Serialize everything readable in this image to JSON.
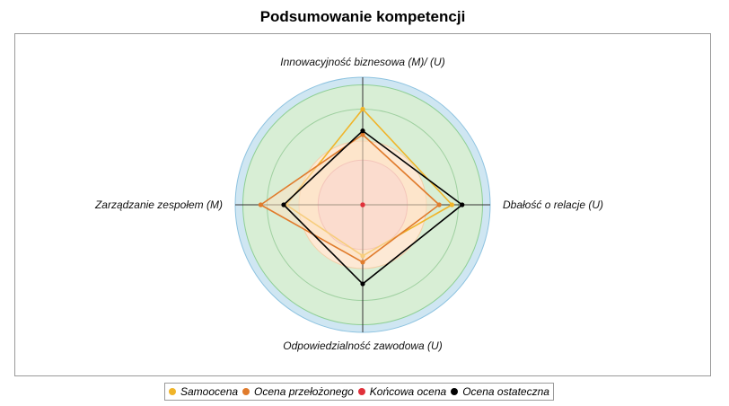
{
  "chart_data": {
    "type": "radar",
    "title": "Podsumowanie kompetencji",
    "axes": [
      "Innowacyjność biznesowa (M)/ (U)",
      "Dbałość o relacje (U)",
      "Odpowiedzialność zawodowa (U)",
      "Zarządzanie zespołem (M)"
    ],
    "rlim": [
      0,
      5
    ],
    "bands": [
      {
        "to": 1.75,
        "color": "#f8d5dc"
      },
      {
        "to": 2.5,
        "color": "#fde9d5"
      },
      {
        "to": 4.7,
        "color": "#d8eed5"
      },
      {
        "to": 5,
        "color": "#cfe6f2"
      }
    ],
    "grid_rings": [
      1.75,
      2.5,
      3.75,
      4.7,
      5
    ],
    "series": [
      {
        "name": "Samoocena",
        "color": "#f0b429",
        "values": [
          3.75,
          3.5,
          2.0,
          3.0
        ],
        "fill": false
      },
      {
        "name": "Ocena przełożonego",
        "color": "#e07b2c",
        "values": [
          2.75,
          3.0,
          2.25,
          4.0
        ],
        "fill": true
      },
      {
        "name": "Końcowa ocena",
        "color": "#e0303a",
        "values": [
          0,
          0,
          0,
          0
        ],
        "fill": false
      },
      {
        "name": "Ocena ostateczna",
        "color": "#000000",
        "values": [
          2.9,
          3.9,
          3.1,
          3.1
        ],
        "fill": false
      }
    ],
    "legend": "bottom"
  }
}
